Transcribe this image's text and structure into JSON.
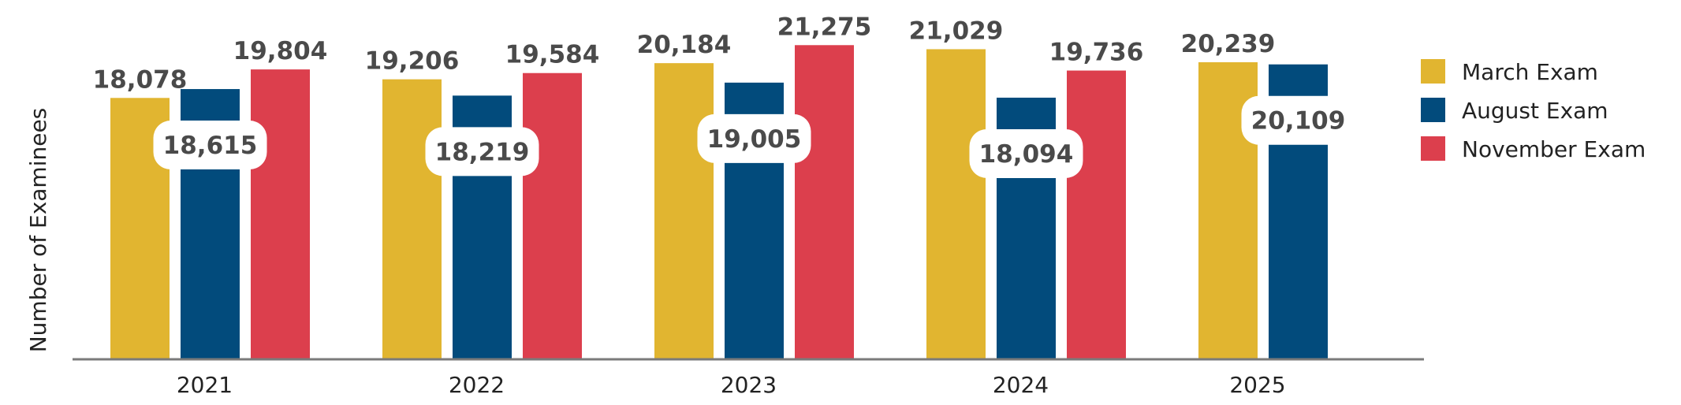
{
  "chart_data": {
    "type": "bar",
    "title": "",
    "xlabel": "",
    "ylabel": "Number of Examinees",
    "categories": [
      "2021",
      "2022",
      "2023",
      "2024",
      "2025"
    ],
    "ylim": [
      2300,
      22500
    ],
    "grid": false,
    "legend_position": "right",
    "series": [
      {
        "name": "March Exam",
        "color": "#E1B530",
        "values": [
          18078,
          19206,
          20184,
          21029,
          20239
        ],
        "labels": [
          "18,078",
          "19,206",
          "20,184",
          "21,029",
          "20,239"
        ]
      },
      {
        "name": "August Exam",
        "color": "#024B7C",
        "values": [
          18615,
          18219,
          19005,
          18094,
          20109
        ],
        "labels": [
          "18,615",
          "18,219",
          "19,005",
          "18,094",
          "20,109"
        ]
      },
      {
        "name": "November Exam",
        "color": "#DC3F4D",
        "values": [
          19804,
          19584,
          21275,
          19736,
          null
        ],
        "labels": [
          "19,804",
          "19,584",
          "21,275",
          "19,736",
          null
        ]
      }
    ]
  }
}
